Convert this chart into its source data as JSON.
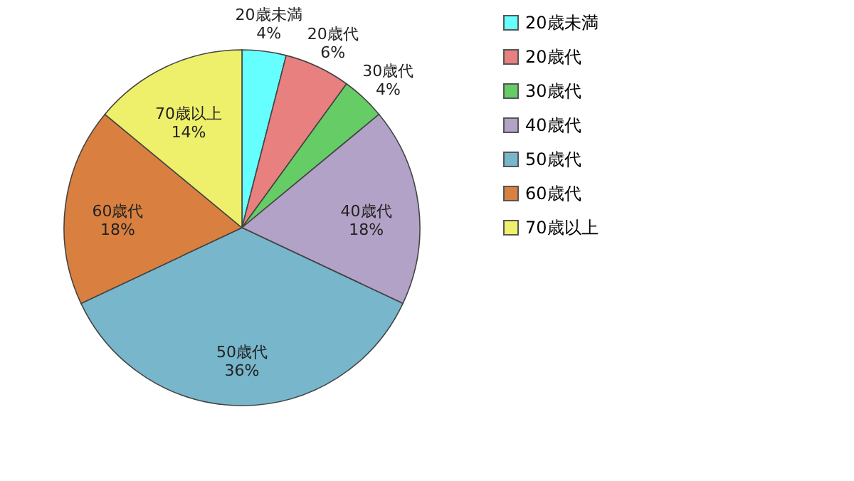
{
  "chart_data": {
    "type": "pie",
    "categories": [
      "20歳未満",
      "20歳代",
      "30歳代",
      "40歳代",
      "50歳代",
      "60歳代",
      "70歳以上"
    ],
    "values": [
      4,
      6,
      4,
      18,
      36,
      18,
      14
    ],
    "colors": [
      "#66ffff",
      "#e98080",
      "#66cc66",
      "#b3a2c7",
      "#78b6cc",
      "#d98040",
      "#eef06b"
    ],
    "value_labels": [
      "4%",
      "6%",
      "4%",
      "18%",
      "36%",
      "18%",
      "14%"
    ],
    "legend": "right"
  }
}
